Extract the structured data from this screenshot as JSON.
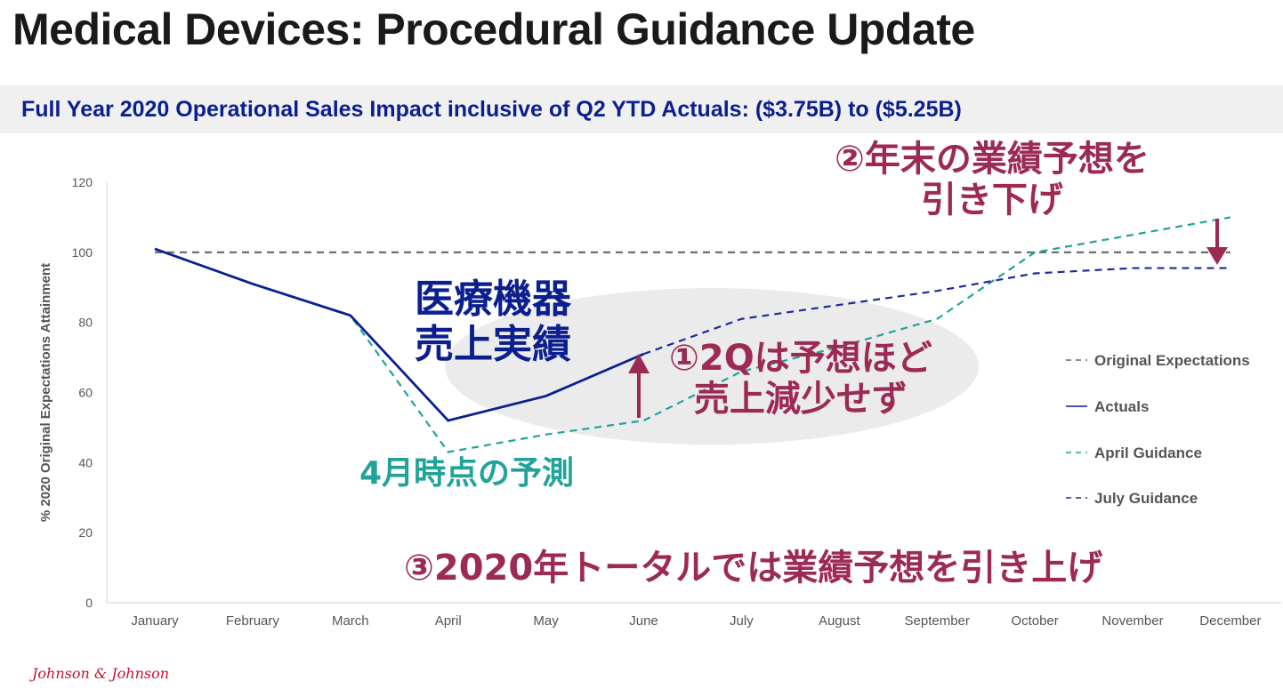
{
  "header": {
    "title": "Medical Devices: Procedural Guidance Update",
    "subtitle": "Full Year 2020 Operational Sales Impact inclusive of Q2 YTD Actuals: ($3.75B) to ($5.25B)"
  },
  "annotations": {
    "actuals_label_line1": "医療機器",
    "actuals_label_line2": "売上実績",
    "april_forecast": "4月時点の予測",
    "q2_note_line1": "①2Qは予想ほど",
    "q2_note_line2": "売上減少せず",
    "yearend_note_line1": "②年末の業績予想を",
    "yearend_note_line2": "引き下げ",
    "total_note": "③2020年トータルでは業績予想を引き上げ"
  },
  "logo": "Johnson & Johnson",
  "colors": {
    "actuals": "#0b1f8f",
    "april": "#21a39a",
    "july": "#1f2a9a",
    "original": "#666666",
    "annotation": "#9c2a55",
    "highlight": "#e8e8e8"
  },
  "chart_data": {
    "type": "line",
    "categories": [
      "January",
      "February",
      "March",
      "April",
      "May",
      "June",
      "July",
      "August",
      "September",
      "October",
      "November",
      "December"
    ],
    "ylabel": "% 2020 Original Expectations Attainment",
    "ylim": [
      0,
      120
    ],
    "yticks": [
      0,
      20,
      40,
      60,
      80,
      100,
      120
    ],
    "grid": false,
    "legend_position": "right",
    "series": [
      {
        "name": "Original Expectations",
        "style": "dashed",
        "color": "#666666",
        "values": [
          100,
          100,
          100,
          100,
          100,
          100,
          100,
          100,
          100,
          100,
          100,
          100
        ]
      },
      {
        "name": "Actuals",
        "style": "solid",
        "color": "#0b1f8f",
        "values": [
          101,
          91,
          82,
          52,
          59,
          71,
          null,
          null,
          null,
          null,
          null,
          null
        ]
      },
      {
        "name": "April Guidance",
        "style": "dashed",
        "color": "#21a39a",
        "values": [
          101,
          91,
          82,
          43,
          48,
          52,
          66,
          73,
          81,
          100,
          105,
          110
        ]
      },
      {
        "name": "July Guidance",
        "style": "dashed",
        "color": "#1f2a9a",
        "values": [
          null,
          null,
          null,
          null,
          null,
          71,
          81,
          85,
          89,
          94,
          95.5,
          95.5
        ]
      }
    ]
  }
}
